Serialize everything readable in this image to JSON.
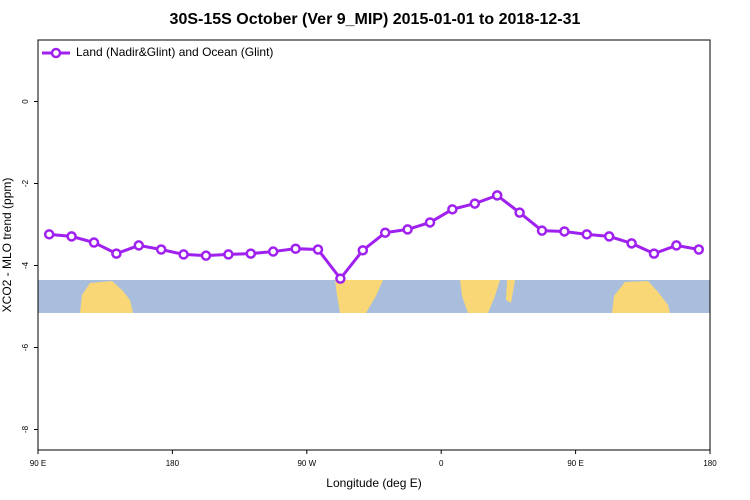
{
  "chart_data": {
    "type": "line",
    "title": "30S-15S October (Ver 9_MIP)   2015-01-01 to 2018-12-31",
    "x_label": "Longitude (deg E)",
    "y_label": "XCO2 - MLO trend (ppm)",
    "x": [
      97.5,
      112.5,
      127.5,
      142.5,
      157.5,
      172.5,
      187.5,
      202.5,
      217.5,
      232.5,
      247.5,
      262.5,
      277.5,
      292.5,
      307.5,
      322.5,
      337.5,
      352.5,
      367.5,
      382.5,
      397.5,
      412.5,
      427.5,
      442.5,
      457.5,
      472.5,
      487.5,
      502.5,
      517.5,
      532.5
    ],
    "series": [
      {
        "name": "Land (Nadir&Glint) and Ocean (Glint)",
        "color": "#a020f0",
        "values": [
          -3.24,
          -3.29,
          -3.44,
          -3.71,
          -3.51,
          -3.61,
          -3.73,
          -3.76,
          -3.73,
          -3.71,
          -3.66,
          -3.59,
          -3.61,
          -4.32,
          -3.63,
          -3.2,
          -3.12,
          -2.95,
          -2.63,
          -2.49,
          -2.29,
          -2.71,
          -3.15,
          -3.17,
          -3.24,
          -3.29,
          -3.46,
          -3.71,
          -3.51,
          -3.61
        ]
      }
    ],
    "xlim": [
      90,
      540
    ],
    "xticks": [
      {
        "value": 90,
        "label": "90 E"
      },
      180,
      {
        "value": 270,
        "label": "90 W"
      },
      {
        "value": 360,
        "label": "0"
      },
      {
        "value": 450,
        "label": "90 E"
      },
      {
        "value": 540,
        "label": "180"
      }
    ],
    "ylim": [
      -8.5,
      1.5
    ],
    "yticks": [
      0,
      -2,
      -4,
      -6,
      -8
    ],
    "legend": "upper left"
  }
}
